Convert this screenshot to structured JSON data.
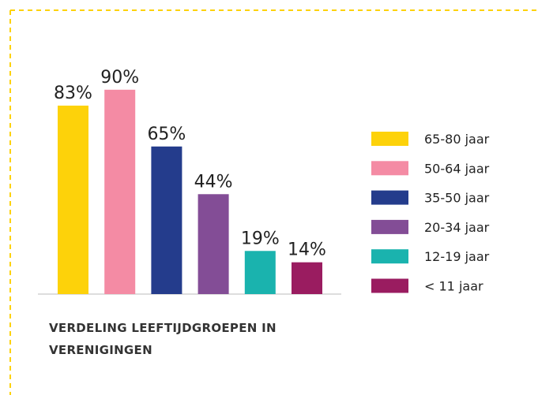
{
  "chart_data": {
    "type": "bar",
    "title": "VERDELING LEEFTIJDGROEPEN IN VERENIGINGEN",
    "categories": [
      "65-80 jaar",
      "50-64 jaar",
      "35-50 jaar",
      "20-34 jaar",
      "12-19 jaar",
      "< 11 jaar"
    ],
    "values": [
      83,
      90,
      65,
      44,
      19,
      14
    ],
    "value_labels": [
      "83%",
      "90%",
      "65%",
      "44%",
      "19%",
      "14%"
    ],
    "colors": [
      "#fdd20a",
      "#f48ba4",
      "#243c8c",
      "#834d96",
      "#1ab3ae",
      "#9a1c60"
    ],
    "legend": "right"
  }
}
